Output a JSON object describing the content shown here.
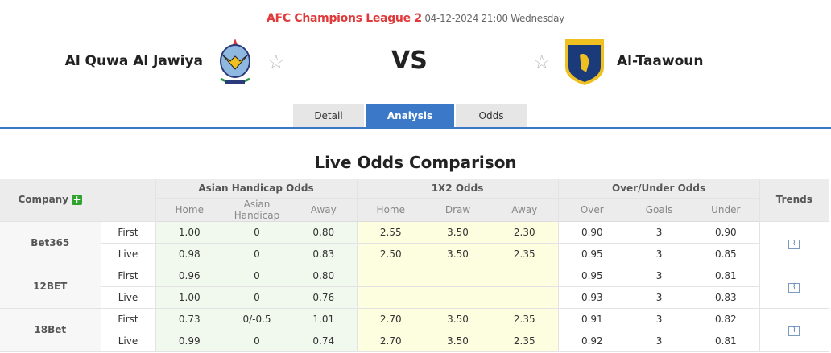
{
  "header": {
    "league": "AFC Champions League 2",
    "datetime": "04-12-2024 21:00 Wednesday",
    "home_team": "Al Quwa Al Jawiya",
    "away_team": "Al-Taawoun",
    "vs": "VS"
  },
  "tabs": [
    {
      "label": "Detail"
    },
    {
      "label": "Analysis",
      "active": true
    },
    {
      "label": "Odds"
    }
  ],
  "section_title": "Live Odds Comparison",
  "table": {
    "company_header": "Company",
    "ah_header": "Asian Handicap Odds",
    "x12_header": "1X2 Odds",
    "ou_header": "Over/Under Odds",
    "trends_header": "Trends",
    "sub": [
      "Home",
      "Asian Handicap",
      "Away",
      "Home",
      "Draw",
      "Away",
      "Over",
      "Goals",
      "Under"
    ],
    "companies": [
      {
        "name": "Bet365",
        "rows": [
          {
            "type": "First",
            "v": [
              "1.00",
              "0",
              "0.80",
              "2.55",
              "3.50",
              "2.30",
              "0.90",
              "3",
              "0.90"
            ]
          },
          {
            "type": "Live",
            "v": [
              "0.98",
              "0",
              "0.83",
              "2.50",
              "3.50",
              "2.35",
              "0.95",
              "3",
              "0.85"
            ]
          }
        ]
      },
      {
        "name": "12BET",
        "rows": [
          {
            "type": "First",
            "v": [
              "0.96",
              "0",
              "0.80",
              "",
              "",
              "",
              "0.95",
              "3",
              "0.81"
            ]
          },
          {
            "type": "Live",
            "v": [
              "1.00",
              "0",
              "0.76",
              "",
              "",
              "",
              "0.93",
              "3",
              "0.83"
            ]
          }
        ]
      },
      {
        "name": "18Bet",
        "rows": [
          {
            "type": "First",
            "v": [
              "0.73",
              "0/-0.5",
              "1.01",
              "2.70",
              "3.50",
              "2.35",
              "0.91",
              "3",
              "0.82"
            ]
          },
          {
            "type": "Live",
            "v": [
              "0.99",
              "0",
              "0.74",
              "2.70",
              "3.50",
              "2.35",
              "0.92",
              "3",
              "0.81"
            ]
          }
        ]
      }
    ]
  },
  "colors": {
    "accent": "#3b79c8",
    "league": "#e03a3a",
    "ah_bg": "#f1f9ee",
    "x12_bg": "#fdfddf"
  }
}
